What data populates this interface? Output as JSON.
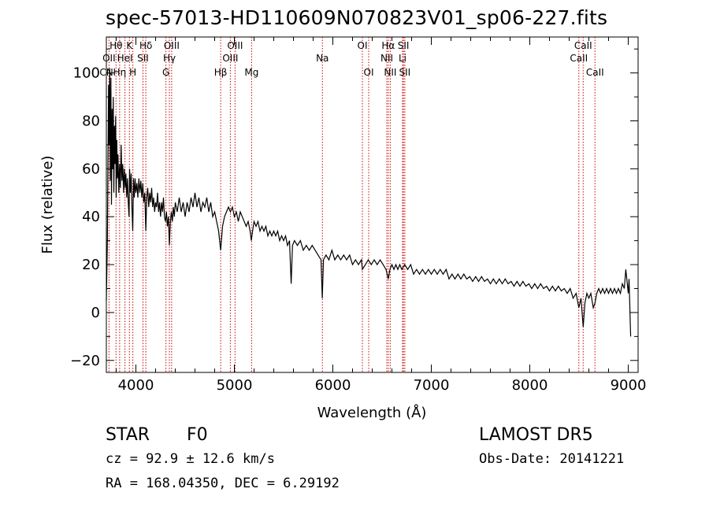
{
  "title": "spec-57013-HD110609N070823V01_sp06-227.fits",
  "footer": {
    "object_class": "STAR",
    "subclass": "F0",
    "survey": "LAMOST DR5",
    "redshift": "cz = 92.9 ± 12.6 km/s",
    "obs_date": "Obs-Date: 20141221",
    "coords": "RA = 168.04350, DEC =   6.29192"
  },
  "colors": {
    "spectrum": "#000000",
    "lines": "#cc0000",
    "axes": "#000000"
  },
  "chart_data": {
    "type": "line",
    "xlabel": "Wavelength (Å)",
    "ylabel": "Flux (relative)",
    "xlim": [
      3700,
      9100
    ],
    "ylim": [
      -25,
      115
    ],
    "xticks": [
      4000,
      5000,
      6000,
      7000,
      8000,
      9000
    ],
    "yticks": [
      -20,
      0,
      20,
      40,
      60,
      80,
      100
    ],
    "grid": false,
    "series": [
      {
        "points": [
          [
            3700,
            5
          ],
          [
            3710,
            30
          ],
          [
            3716,
            60
          ],
          [
            3722,
            95
          ],
          [
            3728,
            70
          ],
          [
            3734,
            102
          ],
          [
            3740,
            55
          ],
          [
            3746,
            98
          ],
          [
            3752,
            45
          ],
          [
            3758,
            85
          ],
          [
            3764,
            60
          ],
          [
            3770,
            90
          ],
          [
            3776,
            50
          ],
          [
            3782,
            78
          ],
          [
            3788,
            62
          ],
          [
            3794,
            82
          ],
          [
            3800,
            48
          ],
          [
            3806,
            72
          ],
          [
            3812,
            56
          ],
          [
            3818,
            66
          ],
          [
            3826,
            50
          ],
          [
            3834,
            62
          ],
          [
            3842,
            52
          ],
          [
            3850,
            70
          ],
          [
            3858,
            55
          ],
          [
            3866,
            62
          ],
          [
            3874,
            50
          ],
          [
            3882,
            60
          ],
          [
            3890,
            52
          ],
          [
            3898,
            58
          ],
          [
            3906,
            48
          ],
          [
            3914,
            56
          ],
          [
            3922,
            46
          ],
          [
            3930,
            40
          ],
          [
            3936,
            60
          ],
          [
            3944,
            50
          ],
          [
            3952,
            58
          ],
          [
            3960,
            44
          ],
          [
            3968,
            34
          ],
          [
            3976,
            56
          ],
          [
            3984,
            48
          ],
          [
            3992,
            56
          ],
          [
            4000,
            50
          ],
          [
            4010,
            54
          ],
          [
            4020,
            48
          ],
          [
            4030,
            56
          ],
          [
            4040,
            50
          ],
          [
            4050,
            55
          ],
          [
            4060,
            48
          ],
          [
            4070,
            54
          ],
          [
            4080,
            46
          ],
          [
            4090,
            50
          ],
          [
            4101,
            34
          ],
          [
            4110,
            48
          ],
          [
            4120,
            52
          ],
          [
            4130,
            44
          ],
          [
            4140,
            50
          ],
          [
            4150,
            46
          ],
          [
            4160,
            52
          ],
          [
            4170,
            44
          ],
          [
            4180,
            48
          ],
          [
            4190,
            42
          ],
          [
            4200,
            46
          ],
          [
            4210,
            44
          ],
          [
            4220,
            50
          ],
          [
            4230,
            42
          ],
          [
            4240,
            46
          ],
          [
            4250,
            40
          ],
          [
            4260,
            46
          ],
          [
            4270,
            42
          ],
          [
            4280,
            48
          ],
          [
            4290,
            40
          ],
          [
            4300,
            38
          ],
          [
            4310,
            42
          ],
          [
            4320,
            36
          ],
          [
            4330,
            40
          ],
          [
            4340,
            28
          ],
          [
            4350,
            38
          ],
          [
            4360,
            42
          ],
          [
            4370,
            38
          ],
          [
            4380,
            44
          ],
          [
            4390,
            40
          ],
          [
            4400,
            46
          ],
          [
            4420,
            42
          ],
          [
            4440,
            48
          ],
          [
            4460,
            42
          ],
          [
            4480,
            46
          ],
          [
            4500,
            40
          ],
          [
            4520,
            46
          ],
          [
            4540,
            42
          ],
          [
            4560,
            48
          ],
          [
            4580,
            44
          ],
          [
            4600,
            50
          ],
          [
            4620,
            44
          ],
          [
            4640,
            48
          ],
          [
            4660,
            42
          ],
          [
            4680,
            46
          ],
          [
            4700,
            44
          ],
          [
            4720,
            48
          ],
          [
            4740,
            42
          ],
          [
            4760,
            46
          ],
          [
            4780,
            40
          ],
          [
            4800,
            42
          ],
          [
            4820,
            38
          ],
          [
            4840,
            34
          ],
          [
            4861,
            26
          ],
          [
            4880,
            36
          ],
          [
            4900,
            40
          ],
          [
            4920,
            42
          ],
          [
            4940,
            44
          ],
          [
            4960,
            42
          ],
          [
            4980,
            44
          ],
          [
            5000,
            40
          ],
          [
            5020,
            42
          ],
          [
            5040,
            38
          ],
          [
            5060,
            42
          ],
          [
            5080,
            40
          ],
          [
            5100,
            38
          ],
          [
            5120,
            36
          ],
          [
            5140,
            38
          ],
          [
            5160,
            34
          ],
          [
            5172,
            30
          ],
          [
            5185,
            34
          ],
          [
            5200,
            38
          ],
          [
            5220,
            36
          ],
          [
            5240,
            38
          ],
          [
            5260,
            34
          ],
          [
            5280,
            36
          ],
          [
            5300,
            34
          ],
          [
            5320,
            36
          ],
          [
            5340,
            32
          ],
          [
            5360,
            34
          ],
          [
            5380,
            32
          ],
          [
            5400,
            34
          ],
          [
            5420,
            32
          ],
          [
            5440,
            34
          ],
          [
            5460,
            30
          ],
          [
            5480,
            32
          ],
          [
            5500,
            30
          ],
          [
            5520,
            32
          ],
          [
            5540,
            28
          ],
          [
            5560,
            30
          ],
          [
            5577,
            12
          ],
          [
            5590,
            28
          ],
          [
            5610,
            30
          ],
          [
            5640,
            28
          ],
          [
            5670,
            30
          ],
          [
            5700,
            26
          ],
          [
            5730,
            28
          ],
          [
            5760,
            26
          ],
          [
            5790,
            28
          ],
          [
            5820,
            26
          ],
          [
            5850,
            24
          ],
          [
            5880,
            22
          ],
          [
            5893,
            6
          ],
          [
            5905,
            22
          ],
          [
            5930,
            24
          ],
          [
            5960,
            22
          ],
          [
            5990,
            26
          ],
          [
            6020,
            22
          ],
          [
            6050,
            24
          ],
          [
            6080,
            22
          ],
          [
            6110,
            24
          ],
          [
            6140,
            22
          ],
          [
            6170,
            24
          ],
          [
            6200,
            20
          ],
          [
            6230,
            22
          ],
          [
            6260,
            20
          ],
          [
            6290,
            22
          ],
          [
            6300,
            18
          ],
          [
            6330,
            20
          ],
          [
            6360,
            22
          ],
          [
            6390,
            20
          ],
          [
            6420,
            22
          ],
          [
            6450,
            20
          ],
          [
            6480,
            22
          ],
          [
            6510,
            20
          ],
          [
            6540,
            18
          ],
          [
            6563,
            14
          ],
          [
            6580,
            18
          ],
          [
            6600,
            20
          ],
          [
            6620,
            18
          ],
          [
            6640,
            20
          ],
          [
            6660,
            18
          ],
          [
            6680,
            20
          ],
          [
            6700,
            18
          ],
          [
            6730,
            20
          ],
          [
            6760,
            18
          ],
          [
            6790,
            20
          ],
          [
            6820,
            16
          ],
          [
            6850,
            18
          ],
          [
            6880,
            16
          ],
          [
            6910,
            18
          ],
          [
            6940,
            16
          ],
          [
            6970,
            18
          ],
          [
            7000,
            16
          ],
          [
            7030,
            18
          ],
          [
            7060,
            16
          ],
          [
            7090,
            18
          ],
          [
            7120,
            16
          ],
          [
            7150,
            18
          ],
          [
            7180,
            14
          ],
          [
            7210,
            16
          ],
          [
            7240,
            14
          ],
          [
            7270,
            16
          ],
          [
            7300,
            14
          ],
          [
            7330,
            16
          ],
          [
            7360,
            14
          ],
          [
            7390,
            15
          ],
          [
            7420,
            13
          ],
          [
            7450,
            15
          ],
          [
            7480,
            13
          ],
          [
            7510,
            15
          ],
          [
            7540,
            13
          ],
          [
            7570,
            14
          ],
          [
            7600,
            12
          ],
          [
            7630,
            14
          ],
          [
            7660,
            12
          ],
          [
            7690,
            14
          ],
          [
            7720,
            12
          ],
          [
            7750,
            14
          ],
          [
            7780,
            12
          ],
          [
            7810,
            13
          ],
          [
            7840,
            11
          ],
          [
            7870,
            13
          ],
          [
            7900,
            11
          ],
          [
            7930,
            13
          ],
          [
            7960,
            11
          ],
          [
            7990,
            12
          ],
          [
            8020,
            10
          ],
          [
            8050,
            12
          ],
          [
            8080,
            10
          ],
          [
            8110,
            12
          ],
          [
            8140,
            10
          ],
          [
            8170,
            11
          ],
          [
            8200,
            9
          ],
          [
            8230,
            11
          ],
          [
            8260,
            9
          ],
          [
            8290,
            11
          ],
          [
            8320,
            9
          ],
          [
            8350,
            10
          ],
          [
            8380,
            8
          ],
          [
            8410,
            10
          ],
          [
            8440,
            6
          ],
          [
            8470,
            8
          ],
          [
            8498,
            2
          ],
          [
            8520,
            6
          ],
          [
            8542,
            -6
          ],
          [
            8560,
            4
          ],
          [
            8580,
            8
          ],
          [
            8600,
            6
          ],
          [
            8620,
            8
          ],
          [
            8645,
            2
          ],
          [
            8662,
            4
          ],
          [
            8680,
            8
          ],
          [
            8700,
            10
          ],
          [
            8720,
            8
          ],
          [
            8740,
            10
          ],
          [
            8760,
            8
          ],
          [
            8780,
            10
          ],
          [
            8800,
            8
          ],
          [
            8820,
            10
          ],
          [
            8840,
            8
          ],
          [
            8860,
            10
          ],
          [
            8880,
            8
          ],
          [
            8900,
            10
          ],
          [
            8920,
            8
          ],
          [
            8940,
            12
          ],
          [
            8960,
            10
          ],
          [
            8975,
            18
          ],
          [
            8990,
            12
          ],
          [
            9000,
            8
          ],
          [
            9008,
            14
          ],
          [
            9015,
            4
          ],
          [
            9020,
            -4
          ],
          [
            9025,
            -10
          ]
        ]
      }
    ],
    "lines_top": [
      {
        "label": "Hθ",
        "x": 3798,
        "row": 1
      },
      {
        "label": "OII",
        "x": 3727,
        "row": 2
      },
      {
        "label": "CN",
        "x": 3700,
        "row": 3
      },
      {
        "label": "K",
        "x": 3934,
        "row": 1
      },
      {
        "label": "HeI",
        "x": 3889,
        "row": 2
      },
      {
        "label": "Hη",
        "x": 3835,
        "row": 3
      },
      {
        "label": "Hδ",
        "x": 4101,
        "row": 1
      },
      {
        "label": "SII",
        "x": 4072,
        "row": 2
      },
      {
        "label": "H",
        "x": 3969,
        "row": 3
      },
      {
        "label": "OIII",
        "x": 4363,
        "row": 1
      },
      {
        "label": "Hγ",
        "x": 4340,
        "row": 2
      },
      {
        "label": "G",
        "x": 4305,
        "row": 3
      },
      {
        "label": "OIII",
        "x": 5007,
        "row": 1
      },
      {
        "label": "OIII",
        "x": 4959,
        "row": 2
      },
      {
        "label": "Hβ",
        "x": 4861,
        "row": 3
      },
      {
        "label": "Mg",
        "x": 5175,
        "row": 3
      },
      {
        "label": "Na",
        "x": 5894,
        "row": 2
      },
      {
        "label": "OI",
        "x": 6300,
        "row": 1
      },
      {
        "label": "OI",
        "x": 6364,
        "row": 3
      },
      {
        "label": "Hα",
        "x": 6563,
        "row": 1
      },
      {
        "label": "NII",
        "x": 6548,
        "row": 2
      },
      {
        "label": "NII",
        "x": 6583,
        "row": 3
      },
      {
        "label": "SII",
        "x": 6717,
        "row": 1
      },
      {
        "label": "Li",
        "x": 6708,
        "row": 2
      },
      {
        "label": "SII",
        "x": 6731,
        "row": 3
      },
      {
        "label": "CaII",
        "x": 8542,
        "row": 1
      },
      {
        "label": "CaII",
        "x": 8498,
        "row": 2
      },
      {
        "label": "CaII",
        "x": 8662,
        "row": 3
      }
    ]
  }
}
